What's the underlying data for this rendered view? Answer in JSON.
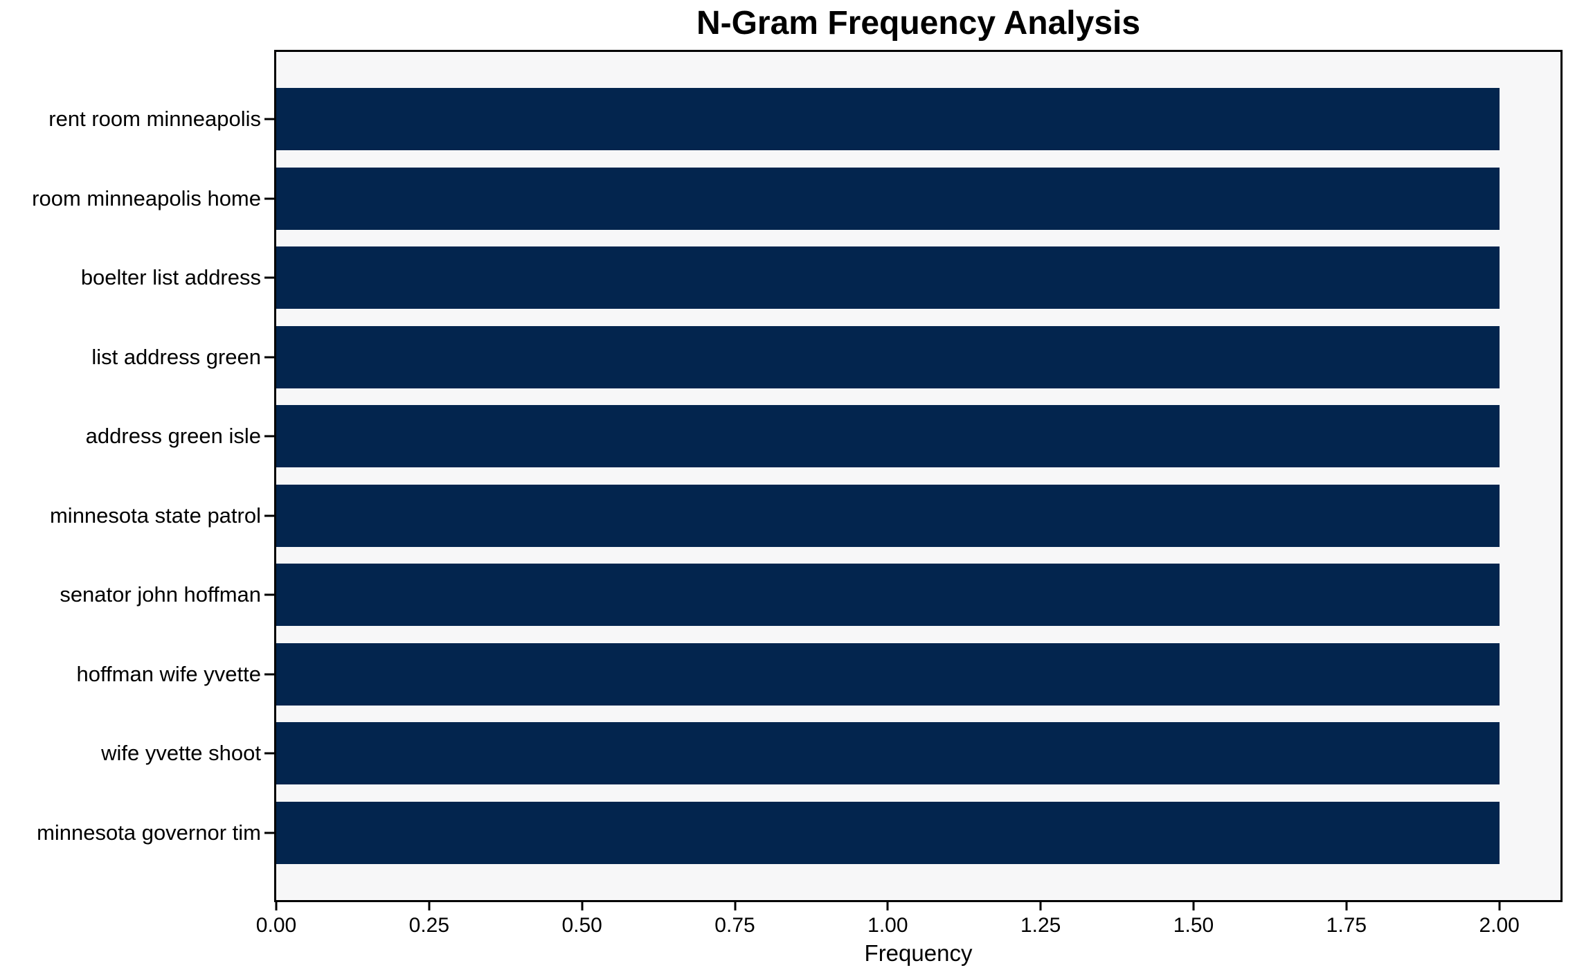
{
  "chart_data": {
    "type": "bar",
    "orientation": "horizontal",
    "title": "N-Gram Frequency Analysis",
    "xlabel": "Frequency",
    "ylabel": "",
    "categories": [
      "rent room minneapolis",
      "room minneapolis home",
      "boelter list address",
      "list address green",
      "address green isle",
      "minnesota state patrol",
      "senator john hoffman",
      "hoffman wife yvette",
      "wife yvette shoot",
      "minnesota governor tim"
    ],
    "values": [
      2,
      2,
      2,
      2,
      2,
      2,
      2,
      2,
      2,
      2
    ],
    "xlim": [
      0,
      2.1
    ],
    "xtick_values": [
      0,
      0.25,
      0.5,
      0.75,
      1.0,
      1.25,
      1.5,
      1.75,
      2.0
    ],
    "xtick_labels": [
      "0.00",
      "0.25",
      "0.50",
      "0.75",
      "1.00",
      "1.25",
      "1.50",
      "1.75",
      "2.00"
    ],
    "grid": false,
    "legend": null,
    "bar_color": "#03254e",
    "plot_bg": "#f7f7f8",
    "figure_bg": "#ffffff",
    "spine_color": "#000000"
  }
}
